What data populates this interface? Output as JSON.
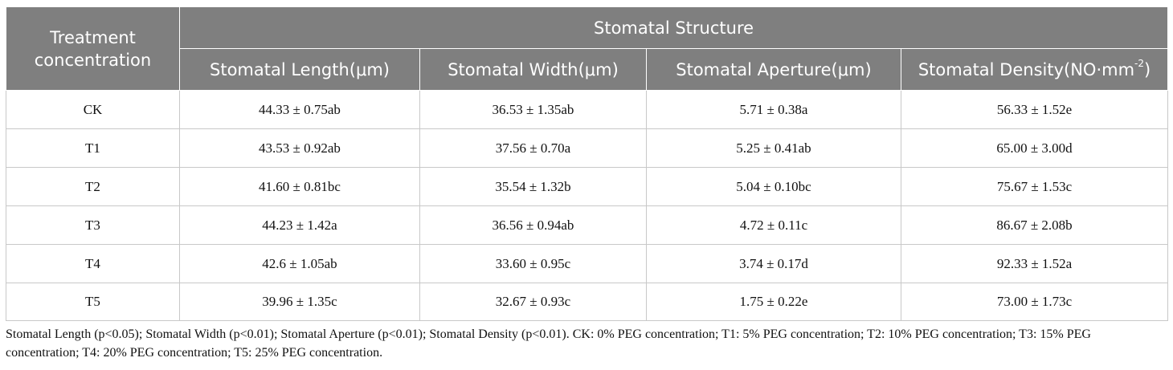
{
  "table": {
    "header": {
      "treatment": "Treatment concentration",
      "group": "Stomatal Structure",
      "columns": [
        {
          "label": "Stomatal Length(μm)",
          "sup": ""
        },
        {
          "label": "Stomatal Width(μm)",
          "sup": ""
        },
        {
          "label": "Stomatal Aperture(μm)",
          "sup": ""
        },
        {
          "label": "Stomatal Density(NO·mm",
          "sup": "-2",
          "suffix": ")"
        }
      ]
    },
    "rows": [
      {
        "treatment": "CK",
        "length": "44.33 ± 0.75ab",
        "width": "36.53 ± 1.35ab",
        "aperture": "5.71 ± 0.38a",
        "density": "56.33 ± 1.52e"
      },
      {
        "treatment": "T1",
        "length": "43.53 ± 0.92ab",
        "width": "37.56 ± 0.70a",
        "aperture": "5.25 ± 0.41ab",
        "density": "65.00 ± 3.00d"
      },
      {
        "treatment": "T2",
        "length": "41.60 ± 0.81bc",
        "width": "35.54 ± 1.32b",
        "aperture": "5.04 ± 0.10bc",
        "density": "75.67 ± 1.53c"
      },
      {
        "treatment": "T3",
        "length": "44.23 ± 1.42a",
        "width": "36.56 ± 0.94ab",
        "aperture": "4.72 ± 0.11c",
        "density": "86.67 ± 2.08b"
      },
      {
        "treatment": "T4",
        "length": "42.6 ± 1.05ab",
        "width": "33.60 ± 0.95c",
        "aperture": "3.74 ± 0.17d",
        "density": "92.33 ± 1.52a"
      },
      {
        "treatment": "T5",
        "length": "39.96 ± 1.35c",
        "width": "32.67 ± 0.93c",
        "aperture": "1.75 ± 0.22e",
        "density": "73.00 ± 1.73c"
      }
    ]
  },
  "footnote": "Stomatal Length (p<0.05); Stomatal Width (p<0.01); Stomatal Aperture (p<0.01); Stomatal Density (p<0.01). CK: 0% PEG concentration; T1: 5% PEG concentration; T2: 10% PEG concentration; T3: 15% PEG concentration; T4: 20% PEG concentration; T5: 25% PEG concentration.",
  "colors": {
    "header_bg": "#7f7f7f",
    "header_text": "#ffffff",
    "grid": "#c8c8c8"
  }
}
